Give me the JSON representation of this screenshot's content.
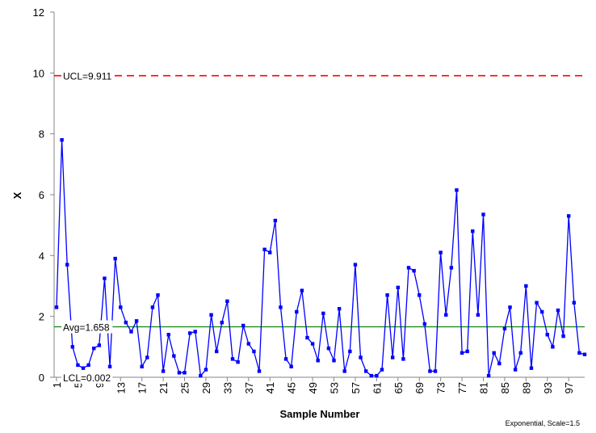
{
  "chart_data": {
    "type": "line",
    "title": "",
    "xlabel": "Sample Number",
    "ylabel": "X",
    "note": "Exponential, Scale=1.5",
    "ylim": [
      0,
      12
    ],
    "y_ticks": [
      0,
      2,
      4,
      6,
      8,
      10,
      12
    ],
    "xlim": [
      1,
      100
    ],
    "x_ticks": [
      1,
      5,
      9,
      13,
      17,
      21,
      25,
      29,
      33,
      37,
      41,
      45,
      49,
      53,
      57,
      61,
      65,
      69,
      73,
      77,
      81,
      85,
      89,
      93,
      97
    ],
    "grid": false,
    "legend": "none",
    "reference_lines": [
      {
        "name": "UCL",
        "label": "UCL=9.911",
        "value": 9.911,
        "color": "#ff0000",
        "style": "dashed"
      },
      {
        "name": "Avg",
        "label": "Avg=1.658",
        "value": 1.658,
        "color": "#008000",
        "style": "solid"
      },
      {
        "name": "LCL",
        "label": "LCL=0.002",
        "value": 0.002,
        "color": "#000000",
        "style": "none"
      }
    ],
    "series": [
      {
        "color": "#0000ff",
        "x": [
          1,
          2,
          3,
          4,
          5,
          6,
          7,
          8,
          9,
          10,
          11,
          12,
          13,
          14,
          15,
          16,
          17,
          18,
          19,
          20,
          21,
          22,
          23,
          24,
          25,
          26,
          27,
          28,
          29,
          30,
          31,
          32,
          33,
          34,
          35,
          36,
          37,
          38,
          39,
          40,
          41,
          42,
          43,
          44,
          45,
          46,
          47,
          48,
          49,
          50,
          51,
          52,
          53,
          54,
          55,
          56,
          57,
          58,
          59,
          60,
          61,
          62,
          63,
          64,
          65,
          66,
          67,
          68,
          69,
          70,
          71,
          72,
          73,
          74,
          75,
          76,
          77,
          78,
          79,
          80,
          81,
          82,
          83,
          84,
          85,
          86,
          87,
          88,
          89,
          90,
          91,
          92,
          93,
          94,
          95,
          96,
          97,
          98,
          99,
          100
        ],
        "values": [
          2.3,
          7.8,
          3.7,
          1.0,
          0.4,
          0.3,
          0.4,
          0.95,
          1.05,
          3.25,
          0.35,
          3.9,
          2.3,
          1.8,
          1.5,
          1.85,
          0.35,
          0.65,
          2.3,
          2.7,
          0.2,
          1.4,
          0.7,
          0.15,
          0.15,
          1.45,
          1.5,
          0.05,
          0.25,
          2.05,
          0.85,
          1.8,
          2.5,
          0.6,
          0.5,
          1.7,
          1.1,
          0.85,
          0.2,
          4.2,
          4.1,
          5.15,
          2.3,
          0.6,
          0.35,
          2.15,
          2.85,
          1.3,
          1.1,
          0.55,
          2.1,
          0.95,
          0.55,
          2.25,
          0.2,
          0.85,
          3.7,
          0.65,
          0.2,
          0.05,
          0.05,
          0.25,
          2.7,
          0.65,
          2.95,
          0.6,
          3.6,
          3.5,
          2.7,
          1.75,
          0.2,
          0.2,
          4.1,
          2.05,
          3.6,
          6.15,
          0.8,
          0.85,
          4.8,
          2.05,
          5.35,
          0.05,
          0.8,
          0.45,
          1.6,
          2.3,
          0.25,
          0.8,
          3.0,
          0.3,
          2.45,
          2.15,
          1.4,
          1.0,
          2.2,
          1.35,
          5.3,
          2.45,
          0.8,
          0.75
        ]
      }
    ]
  }
}
